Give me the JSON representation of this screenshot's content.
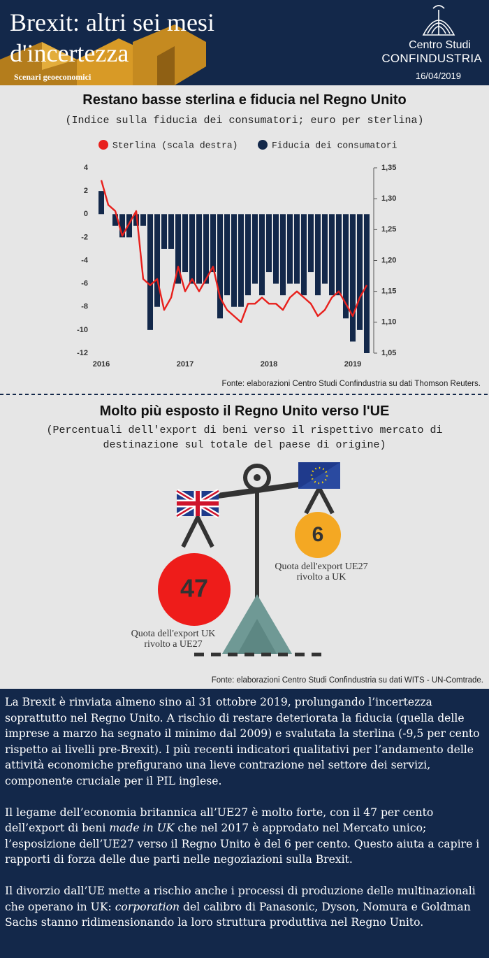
{
  "header": {
    "title": "Brexit: altri sei mesi d'incertezza",
    "series_label": "Scenari geoeconomici",
    "org_line1": "Centro Studi",
    "org_line2": "CONFINDUSTRIA",
    "date": "16/04/2019"
  },
  "chart_data": [
    {
      "type": "combo",
      "title": "Restano basse sterlina e fiducia nel Regno Unito",
      "subtitle": "(Indice sulla fiducia dei consumatori; euro per sterlina)",
      "categories": [
        "2016",
        null,
        null,
        null,
        null,
        null,
        null,
        null,
        null,
        null,
        null,
        null,
        "2017",
        null,
        null,
        null,
        null,
        null,
        null,
        null,
        null,
        null,
        null,
        null,
        "2018",
        null,
        null,
        null,
        null,
        null,
        null,
        null,
        null,
        null,
        null,
        null,
        "2019",
        null,
        null
      ],
      "series": [
        {
          "name": "Sterlina (scala destra)",
          "type": "line",
          "axis": "y2",
          "color": "#e8201c",
          "values": [
            1.33,
            1.29,
            1.28,
            1.24,
            1.26,
            1.28,
            1.17,
            1.16,
            1.17,
            1.12,
            1.14,
            1.19,
            1.15,
            1.17,
            1.15,
            1.17,
            1.19,
            1.14,
            1.12,
            1.11,
            1.1,
            1.13,
            1.13,
            1.14,
            1.13,
            1.13,
            1.12,
            1.14,
            1.15,
            1.14,
            1.13,
            1.11,
            1.12,
            1.14,
            1.15,
            1.13,
            1.11,
            1.14,
            1.16
          ]
        },
        {
          "name": "Fiducia dei consumatori",
          "type": "bar",
          "color": "#13284a",
          "values": [
            2,
            0,
            -1,
            -2,
            -2,
            -1,
            -1,
            -10,
            -8,
            -3,
            -3,
            -6,
            -5,
            -6,
            -6,
            -6,
            -5,
            -9,
            -7,
            -8,
            -8,
            -7,
            -6,
            -7,
            -5,
            -6,
            -7,
            -6,
            -6,
            -7,
            -5,
            -7,
            -6,
            -7,
            -7,
            -9,
            -11,
            -10,
            -12
          ]
        }
      ],
      "ylim": [
        -12,
        4
      ],
      "yticks": [
        4,
        2,
        0,
        -2,
        -4,
        -6,
        -8,
        -10,
        -12
      ],
      "y2lim": [
        1.05,
        1.35
      ],
      "y2ticks": [
        {
          "value": 1.35,
          "label": "1,35"
        },
        {
          "value": 1.3,
          "label": "1,30"
        },
        {
          "value": 1.25,
          "label": "1,25"
        },
        {
          "value": 1.2,
          "label": "1,20"
        },
        {
          "value": 1.15,
          "label": "1,15"
        },
        {
          "value": 1.1,
          "label": "1,10"
        },
        {
          "value": 1.05,
          "label": "1,05"
        }
      ],
      "legend": "top",
      "source": "Fonte: elaborazioni Centro Studi Confindustria su dati Thomson Reuters."
    },
    {
      "type": "balance",
      "title": "Molto più esposto il Regno Unito verso l'UE",
      "subtitle": "(Percentuali dell'export di beni verso il rispettivo mercato di destinazione sul totale del paese di origine)",
      "categories": [
        "Quota dell'export UK rivolto a UE27",
        "Quota dell'export UE27 rivolto a UK"
      ],
      "values": [
        47,
        6
      ],
      "colors": [
        "#ee1c1a",
        "#f4a823"
      ],
      "source": "Fonte: elaborazioni Centro Studi Confindustria su dati WITS - UN-Comtrade."
    }
  ],
  "text": {
    "paragraphs": [
      [
        "La Brexit è rinviata almeno sino al 31 ottobre 2019, prolungando l’incertezza soprattutto nel Regno Unito. A rischio di restare deteriorata la fiducia (quella delle imprese a marzo ha segnato il minimo dal 2009) e svalutata la sterlina (-9,5 per cento rispetto ai livelli pre-Brexit). I più recenti indicatori qualitativi per l’andamento delle attività economiche prefigurano una lieve contrazione nel settore dei servizi, componente cruciale per il PIL inglese."
      ],
      [
        "Il legame dell’economia britannica all’UE27 è molto forte, con il 47 per cento dell’export di beni ",
        "made in UK",
        " che nel 2017 è approdato nel Mercato unico; l’esposizione dell’UE27 verso il Regno Unito è del 6 per cento. Questo aiuta a capire i rapporti di forza delle due parti nelle negoziazioni sulla Brexit."
      ],
      [
        "Il divorzio dall’UE mette a rischio anche i processi di produzione delle multinazionali che operano in UK: ",
        "corporation",
        " del calibro di Panasonic, Dyson, Nomura e Goldman Sachs stanno ridimensionando la loro struttura produttiva nel Regno Unito."
      ]
    ]
  }
}
